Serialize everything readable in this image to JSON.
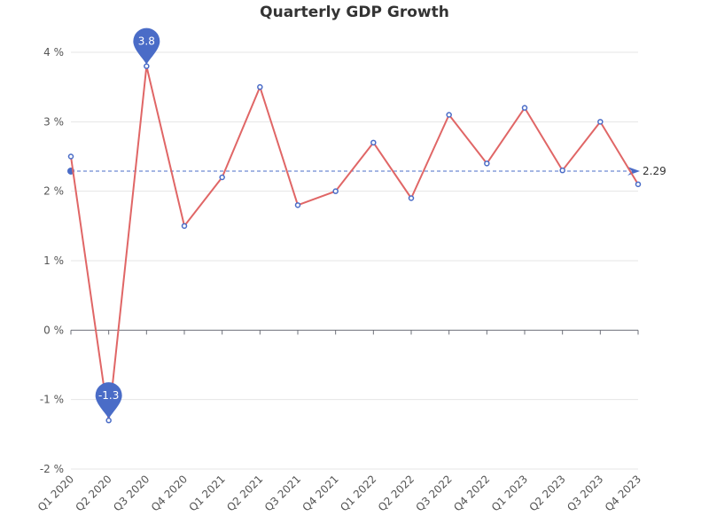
{
  "chart_data": {
    "type": "line",
    "title": "Quarterly GDP Growth",
    "categories": [
      "Q1 2020",
      "Q2 2020",
      "Q3 2020",
      "Q4 2020",
      "Q1 2021",
      "Q2 2021",
      "Q3 2021",
      "Q4 2021",
      "Q1 2022",
      "Q2 2022",
      "Q3 2022",
      "Q4 2022",
      "Q1 2023",
      "Q2 2023",
      "Q3 2023",
      "Q4 2023"
    ],
    "series": [
      {
        "values": [
          2.5,
          -1.3,
          3.8,
          1.5,
          2.2,
          3.5,
          1.8,
          2.0,
          2.7,
          1.9,
          3.1,
          2.4,
          3.2,
          2.3,
          3.0,
          2.1
        ]
      }
    ],
    "ylim": [
      -2,
      4
    ],
    "y_ticks": [
      -2,
      -1,
      0,
      1,
      2,
      3,
      4
    ],
    "y_tick_suffix": " %",
    "grid": true,
    "mark_points": [
      {
        "type": "max",
        "category": "Q3 2020",
        "value": 3.8,
        "label": "3.8"
      },
      {
        "type": "min",
        "category": "Q2 2020",
        "value": -1.3,
        "label": "-1.3"
      }
    ],
    "mark_line": {
      "type": "average",
      "value": 2.29,
      "label": "2.29"
    }
  },
  "colors": {
    "line": "#e06666",
    "point_stroke": "#4a6cc7",
    "marker": "#4a6cc7",
    "average_line": "#4a6cc7",
    "grid": "#e6e6e6",
    "axis": "#6e7079"
  }
}
